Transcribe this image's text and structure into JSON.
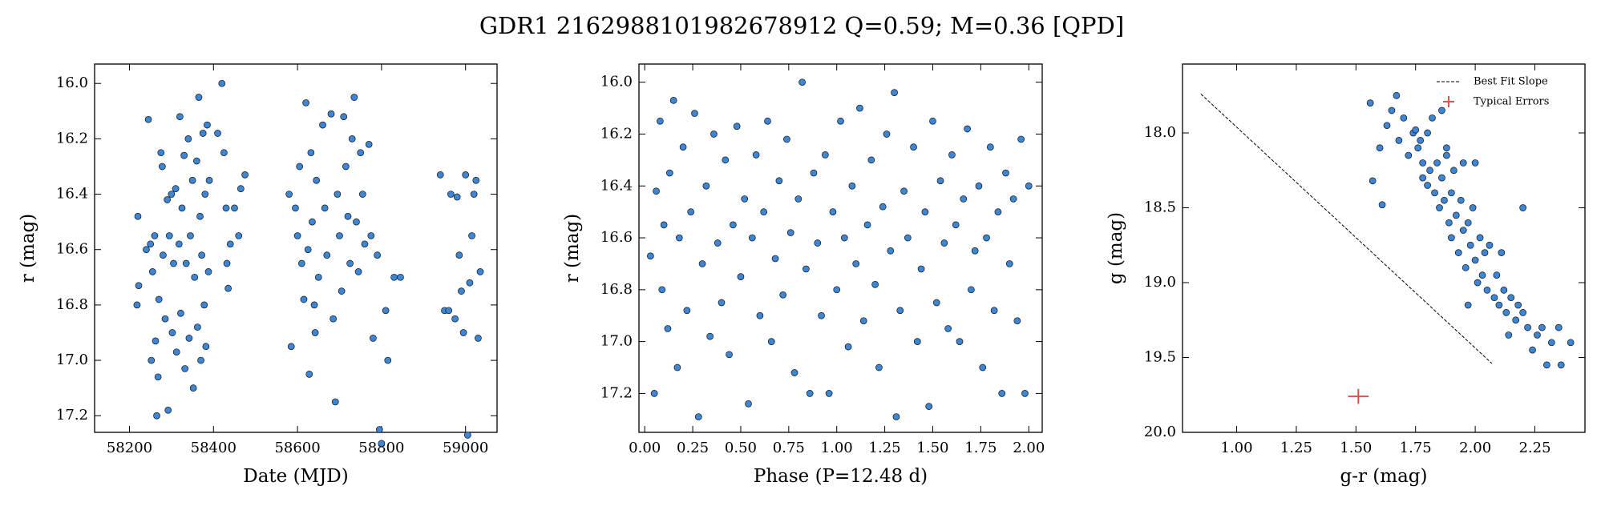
{
  "title": "GDR1 2162988101982678912  Q=0.59; M=0.36 [QPD]",
  "chart_data": [
    {
      "type": "scatter",
      "xlabel": "Date (MJD)",
      "ylabel": "r (mag)",
      "color": "#3d86d6",
      "xlim": [
        58117,
        59075
      ],
      "ylim": [
        17.26,
        15.93
      ],
      "xticks": [
        58200,
        58400,
        58600,
        58800,
        59000
      ],
      "yticks": [
        {
          "value": 16.0,
          "label": "16.0"
        },
        {
          "value": 16.2,
          "label": "16.2"
        },
        {
          "value": 16.4,
          "label": "16.4"
        },
        {
          "value": 16.6,
          "label": "16.6"
        },
        {
          "value": 16.8,
          "label": "16.8"
        },
        {
          "value": 17.0,
          "label": "17.0"
        },
        {
          "value": 17.2,
          "label": "17.2"
        }
      ],
      "x": [
        58220,
        58222,
        58218,
        58240,
        58245,
        58250,
        58252,
        58255,
        58260,
        58262,
        58265,
        58268,
        58270,
        58275,
        58278,
        58280,
        58285,
        58290,
        58292,
        58295,
        58300,
        58302,
        58305,
        58310,
        58312,
        58318,
        58320,
        58322,
        58325,
        58330,
        58332,
        58335,
        58340,
        58342,
        58345,
        58350,
        58352,
        58355,
        58360,
        58362,
        58365,
        58368,
        58370,
        58372,
        58375,
        58378,
        58380,
        58382,
        58385,
        58388,
        58390,
        58410,
        58420,
        58425,
        58430,
        58432,
        58435,
        58440,
        58450,
        58460,
        58465,
        58475,
        58580,
        58585,
        58595,
        58600,
        58605,
        58610,
        58615,
        58620,
        58625,
        58628,
        58632,
        58635,
        58640,
        58642,
        58645,
        58650,
        58660,
        58665,
        58670,
        58680,
        58685,
        58690,
        58695,
        58700,
        58705,
        58710,
        58715,
        58720,
        58725,
        58730,
        58735,
        58740,
        58745,
        58750,
        58755,
        58760,
        58770,
        58775,
        58780,
        58790,
        58795,
        58800,
        58810,
        58815,
        58830,
        58845,
        58940,
        58950,
        58960,
        58965,
        58975,
        58980,
        58985,
        58990,
        58995,
        59000,
        59005,
        59010,
        59015,
        59020,
        59025,
        59030,
        59035
      ],
      "values": [
        16.48,
        16.73,
        16.8,
        16.6,
        16.13,
        16.58,
        17.0,
        16.68,
        16.55,
        16.93,
        17.2,
        17.06,
        16.78,
        16.25,
        16.3,
        16.62,
        16.85,
        16.42,
        17.18,
        16.55,
        16.4,
        16.9,
        16.65,
        16.38,
        16.97,
        16.58,
        16.12,
        16.83,
        16.45,
        16.26,
        17.03,
        16.65,
        16.2,
        16.92,
        16.55,
        16.35,
        17.1,
        16.7,
        16.28,
        16.88,
        16.05,
        16.48,
        17.0,
        16.62,
        16.18,
        16.8,
        16.4,
        16.95,
        16.15,
        16.68,
        16.35,
        16.18,
        16.0,
        16.25,
        16.45,
        16.65,
        16.74,
        16.58,
        16.45,
        16.55,
        16.38,
        16.33,
        16.4,
        16.95,
        16.45,
        16.55,
        16.3,
        16.65,
        16.78,
        16.07,
        16.6,
        17.05,
        16.25,
        16.5,
        16.8,
        16.9,
        16.35,
        16.7,
        16.15,
        16.45,
        16.62,
        16.11,
        16.85,
        17.15,
        16.4,
        16.55,
        16.75,
        16.12,
        16.3,
        16.48,
        16.65,
        16.2,
        16.05,
        16.5,
        16.68,
        16.25,
        16.4,
        16.58,
        16.22,
        16.55,
        16.92,
        16.62,
        17.25,
        17.3,
        16.82,
        17.0,
        16.7,
        16.7,
        16.33,
        16.82,
        16.82,
        16.4,
        16.85,
        16.41,
        16.62,
        16.75,
        16.9,
        16.33,
        17.27,
        16.72,
        16.55,
        16.4,
        16.35,
        16.92,
        16.68
      ]
    },
    {
      "type": "scatter",
      "xlabel": "Phase (P=12.48 d)",
      "ylabel": "r (mag)",
      "color": "#3d86d6",
      "xlim": [
        -0.03,
        2.07
      ],
      "ylim": [
        17.35,
        15.93
      ],
      "xticks": [
        {
          "value": 0,
          "label": "0.00"
        },
        {
          "value": 0.25,
          "label": "0.25"
        },
        {
          "value": 0.5,
          "label": "0.50"
        },
        {
          "value": 0.75,
          "label": "0.75"
        },
        {
          "value": 1,
          "label": "1.00"
        },
        {
          "value": 1.25,
          "label": "1.25"
        },
        {
          "value": 1.5,
          "label": "1.50"
        },
        {
          "value": 1.75,
          "label": "1.75"
        },
        {
          "value": 2,
          "label": "2.00"
        }
      ],
      "yticks": [
        {
          "value": 16.0,
          "label": "16.0"
        },
        {
          "value": 16.2,
          "label": "16.2"
        },
        {
          "value": 16.4,
          "label": "16.4"
        },
        {
          "value": 16.6,
          "label": "16.6"
        },
        {
          "value": 16.8,
          "label": "16.8"
        },
        {
          "value": 17.0,
          "label": "17.0"
        },
        {
          "value": 17.2,
          "label": "17.2"
        }
      ],
      "x": [
        0.03,
        0.05,
        0.06,
        0.08,
        0.09,
        0.1,
        0.12,
        0.13,
        0.15,
        0.17,
        0.18,
        0.2,
        0.22,
        0.24,
        0.26,
        0.28,
        0.3,
        0.32,
        0.34,
        0.36,
        0.38,
        0.4,
        0.42,
        0.44,
        0.46,
        0.48,
        0.5,
        0.52,
        0.54,
        0.56,
        0.58,
        0.6,
        0.62,
        0.64,
        0.66,
        0.68,
        0.7,
        0.72,
        0.74,
        0.76,
        0.78,
        0.8,
        0.82,
        0.84,
        0.86,
        0.88,
        0.9,
        0.92,
        0.94,
        0.96,
        0.98,
        1.0,
        1.02,
        1.04,
        1.06,
        1.08,
        1.1,
        1.12,
        1.14,
        1.16,
        1.18,
        1.2,
        1.22,
        1.24,
        1.26,
        1.28,
        1.3,
        1.31,
        1.33,
        1.35,
        1.37,
        1.4,
        1.42,
        1.44,
        1.46,
        1.48,
        1.5,
        1.52,
        1.54,
        1.56,
        1.58,
        1.6,
        1.62,
        1.64,
        1.66,
        1.68,
        1.7,
        1.72,
        1.74,
        1.76,
        1.78,
        1.8,
        1.82,
        1.84,
        1.86,
        1.88,
        1.9,
        1.92,
        1.94,
        1.96,
        1.98,
        2.0
      ],
      "values": [
        16.67,
        17.2,
        16.42,
        16.15,
        16.8,
        16.55,
        16.95,
        16.35,
        16.07,
        17.1,
        16.6,
        16.25,
        16.88,
        16.5,
        16.12,
        17.29,
        16.7,
        16.4,
        16.98,
        16.2,
        16.62,
        16.85,
        16.3,
        17.05,
        16.55,
        16.17,
        16.75,
        16.45,
        17.24,
        16.6,
        16.28,
        16.9,
        16.5,
        16.15,
        17.0,
        16.68,
        16.38,
        16.82,
        16.22,
        16.58,
        17.12,
        16.45,
        16.0,
        16.72,
        17.2,
        16.35,
        16.62,
        16.9,
        16.28,
        17.2,
        16.5,
        16.8,
        16.15,
        16.6,
        17.02,
        16.4,
        16.7,
        16.1,
        16.92,
        16.55,
        16.3,
        16.78,
        17.1,
        16.48,
        16.2,
        16.65,
        16.04,
        17.29,
        16.88,
        16.42,
        16.6,
        16.25,
        17.0,
        16.72,
        16.5,
        17.25,
        16.15,
        16.85,
        16.38,
        16.62,
        16.95,
        16.28,
        16.55,
        17.0,
        16.45,
        16.18,
        16.8,
        16.65,
        16.4,
        17.1,
        16.6,
        16.25,
        16.88,
        16.5,
        17.2,
        16.35,
        16.7,
        16.45,
        16.92,
        16.22,
        17.2,
        16.4
      ]
    },
    {
      "type": "scatter",
      "xlabel": "g-r (mag)",
      "ylabel": "g (mag)",
      "color": "#3d86d6",
      "xlim": [
        0.773,
        2.46
      ],
      "ylim": [
        20.0,
        17.54
      ],
      "xticks": [
        {
          "value": 1,
          "label": "1.00"
        },
        {
          "value": 1.25,
          "label": "1.25"
        },
        {
          "value": 1.5,
          "label": "1.50"
        },
        {
          "value": 1.75,
          "label": "1.75"
        },
        {
          "value": 2,
          "label": "2.00"
        },
        {
          "value": 2.25,
          "label": "2.25"
        }
      ],
      "yticks": [
        {
          "value": 18.0,
          "label": "18.0"
        },
        {
          "value": 18.5,
          "label": "18.5"
        },
        {
          "value": 19.0,
          "label": "19.0"
        },
        {
          "value": 19.5,
          "label": "19.5"
        },
        {
          "value": 20.0,
          "label": "20.0"
        }
      ],
      "x": [
        1.56,
        1.57,
        1.6,
        1.61,
        1.63,
        1.65,
        1.67,
        1.68,
        1.7,
        1.72,
        1.74,
        1.75,
        1.76,
        1.77,
        1.78,
        1.78,
        1.8,
        1.8,
        1.81,
        1.82,
        1.83,
        1.84,
        1.85,
        1.86,
        1.86,
        1.87,
        1.88,
        1.89,
        1.9,
        1.9,
        1.91,
        1.92,
        1.93,
        1.94,
        1.95,
        1.95,
        1.96,
        1.97,
        1.98,
        1.99,
        2.0,
        2.0,
        2.01,
        2.02,
        2.03,
        2.04,
        2.05,
        2.06,
        2.08,
        2.09,
        2.1,
        2.11,
        2.12,
        2.13,
        2.14,
        2.15,
        2.17,
        2.18,
        2.2,
        2.2,
        2.22,
        2.24,
        2.26,
        2.28,
        2.3,
        2.32,
        2.35,
        2.36,
        2.4,
        1.97,
        1.88
      ],
      "values": [
        17.8,
        18.32,
        18.1,
        18.48,
        17.95,
        17.85,
        17.75,
        18.05,
        17.9,
        18.15,
        18.0,
        17.98,
        18.1,
        18.05,
        18.2,
        18.3,
        18.0,
        18.35,
        18.25,
        17.9,
        18.4,
        18.2,
        18.5,
        18.3,
        17.85,
        18.45,
        18.15,
        18.6,
        18.4,
        18.7,
        18.25,
        18.55,
        18.8,
        18.45,
        18.65,
        18.2,
        18.9,
        18.6,
        18.75,
        18.5,
        18.85,
        18.2,
        19.0,
        18.7,
        18.95,
        18.8,
        19.05,
        18.75,
        19.1,
        18.95,
        19.15,
        18.8,
        19.05,
        19.2,
        19.35,
        19.1,
        19.25,
        19.15,
        18.5,
        19.2,
        19.3,
        19.45,
        19.35,
        19.3,
        19.55,
        19.4,
        19.3,
        19.55,
        19.4,
        19.15,
        18.1
      ],
      "fit": {
        "name": "Best Fit Slope",
        "x": [
          0.85,
          2.07
        ],
        "values": [
          17.74,
          19.54
        ],
        "color": "#000000"
      },
      "errors": {
        "name": "Typical Errors",
        "x": 1.51,
        "value": 19.76,
        "xerr": 0.043,
        "yerr": 0.05,
        "color": "#d9534f"
      },
      "legend": "upper right"
    }
  ]
}
